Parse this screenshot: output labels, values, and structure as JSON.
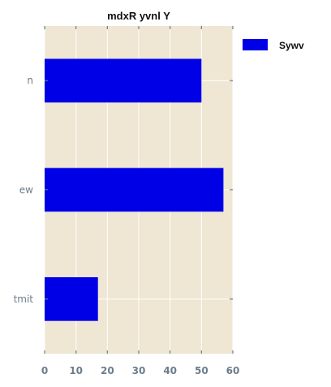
{
  "chart_data": {
    "type": "bar",
    "orientation": "horizontal",
    "title": "mdxR yvnl Y",
    "categories": [
      "n",
      "ew",
      "tmit"
    ],
    "series": [
      {
        "name": "Sywv",
        "values": [
          50,
          57,
          17
        ],
        "color": "#0000e6"
      }
    ],
    "xlim": [
      0,
      60
    ],
    "xticks": [
      0,
      10,
      20,
      30,
      40,
      50,
      60
    ],
    "xlabel": "",
    "ylabel": "",
    "grid": true,
    "legend_position": "outside-top-right",
    "colors": {
      "plot_background": "#efe6d3",
      "grid": "#ffffff",
      "tick_label": "#6b7d8c",
      "tick_mark": "#6b7d8c"
    }
  }
}
